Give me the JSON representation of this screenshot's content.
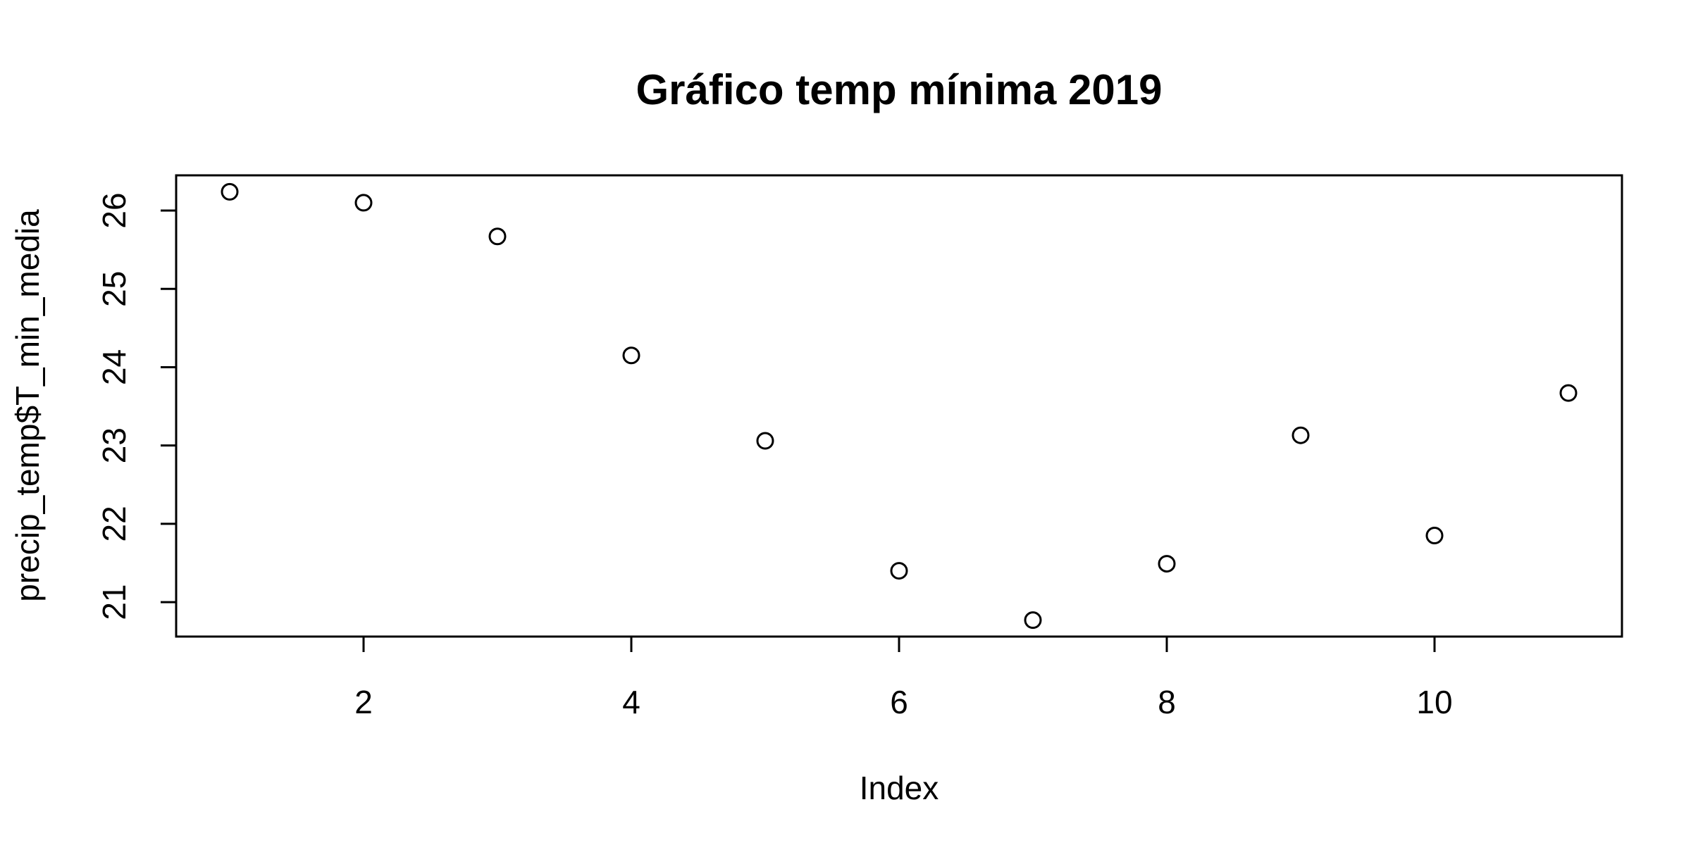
{
  "chart_data": {
    "type": "scatter",
    "title": "Gráfico temp mínima 2019",
    "xlabel": "Index",
    "ylabel": "precip_temp$T_min_media",
    "x": [
      1,
      2,
      3,
      4,
      5,
      6,
      7,
      8,
      9,
      10,
      11
    ],
    "y": [
      26.24,
      26.1,
      25.67,
      24.15,
      23.06,
      21.4,
      20.77,
      21.49,
      23.13,
      21.85,
      23.67
    ],
    "xlim": [
      0.6,
      11.4
    ],
    "ylim": [
      20.56,
      26.45
    ],
    "x_ticks": [
      "2",
      "4",
      "6",
      "8",
      "10"
    ],
    "y_ticks": [
      "21",
      "22",
      "23",
      "24",
      "25",
      "26"
    ],
    "grid": false,
    "marker": "open-circle",
    "colors": {
      "points": "#000000",
      "axes": "#000000"
    }
  }
}
